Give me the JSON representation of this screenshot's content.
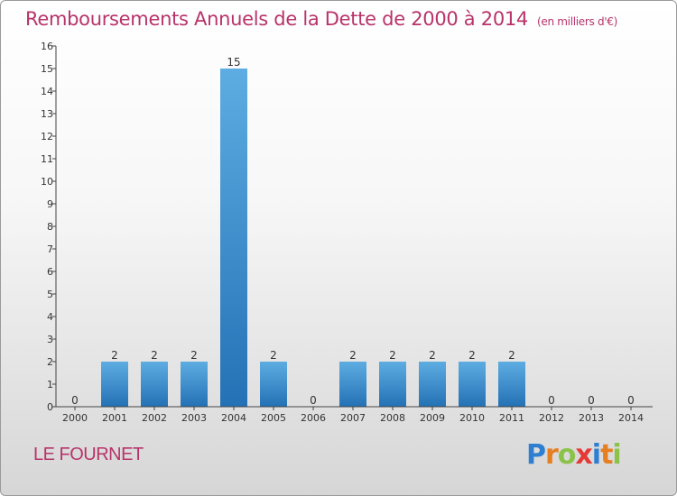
{
  "title": "Remboursements Annuels de la Dette de 2000 à 2014",
  "unit_note": "(en milliers d'€)",
  "commune": "LE FOURNET",
  "logo": {
    "text": "Proxiti",
    "letters": [
      {
        "ch": "P",
        "color": "#2f7fd1"
      },
      {
        "ch": "r",
        "color": "#e67e22"
      },
      {
        "ch": "o",
        "color": "#8bc34a"
      },
      {
        "ch": "x",
        "color": "#e53935"
      },
      {
        "ch": "i",
        "color": "#2f7fd1"
      },
      {
        "ch": "t",
        "color": "#e67e22"
      },
      {
        "ch": "i",
        "color": "#8bc34a"
      }
    ]
  },
  "colors": {
    "title": "#b8336a",
    "bar_top": "#5dade2",
    "bar_bottom": "#2471b5",
    "axis": "#444444",
    "text": "#333333"
  },
  "chart_data": {
    "type": "bar",
    "categories": [
      "2000",
      "2001",
      "2002",
      "2003",
      "2004",
      "2005",
      "2006",
      "2007",
      "2008",
      "2009",
      "2010",
      "2011",
      "2012",
      "2013",
      "2014"
    ],
    "values": [
      0,
      2,
      2,
      2,
      15,
      2,
      0,
      2,
      2,
      2,
      2,
      2,
      0,
      0,
      0
    ],
    "data_labels": [
      "0",
      "2",
      "2",
      "2",
      "15",
      "2",
      "0",
      "2",
      "2",
      "2",
      "2",
      "2",
      "0",
      "0",
      "0"
    ],
    "ylim": [
      0,
      16
    ],
    "yticks": [
      "0",
      "1",
      "2",
      "3",
      "4",
      "5",
      "6",
      "7",
      "8",
      "9",
      "10",
      "11",
      "12",
      "13",
      "14",
      "15",
      "16"
    ],
    "grid": false,
    "legend": "none"
  }
}
